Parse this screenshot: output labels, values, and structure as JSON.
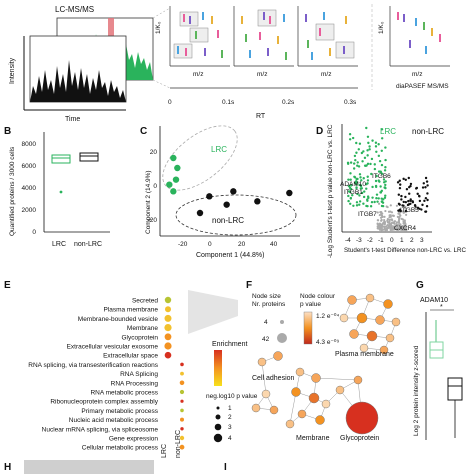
{
  "panel_A": {
    "lcms_title": "LC-MS/MS",
    "time_label": "Time",
    "intensity_label": "Intensity",
    "yaxis_label": "1/K₀",
    "mz_label": "m/z",
    "rt_label": "RT",
    "rt_ticks": [
      "0",
      "0.1s",
      "0.2s",
      "0.3s"
    ],
    "dia_label": "diaPASEF MS/MS"
  },
  "panel_B": {
    "label": "B",
    "ylabel": "Quantified proteins / 3000 cells",
    "yticks": [
      "0",
      "2000",
      "4000",
      "6000",
      "8000"
    ],
    "categories": [
      "LRC",
      "non-LRC"
    ]
  },
  "panel_C": {
    "label": "C",
    "xlabel": "Component 1 (44.8%)",
    "ylabel": "Component 2 (14.9%)",
    "xticks": [
      "-20",
      "0",
      "20",
      "40"
    ],
    "yticks": [
      "-20",
      "0",
      "20"
    ],
    "group_lrc": "LRC",
    "group_nonlrc": "non-LRC"
  },
  "panel_D": {
    "label": "D",
    "ylabel": "-Log Student's t-test p value non-LRC vs. LRC",
    "xlabel": "Student's t-test Difference non-LRC vs. LRC",
    "xticks": [
      "-4",
      "-3",
      "-2",
      "-1",
      "0",
      "1",
      "2",
      "3"
    ],
    "group_lrc": "LRC",
    "group_nonlrc": "non-LRC",
    "gene_labels": [
      "ADAM10",
      "ITGB1",
      "ITGB6",
      "ITGB7",
      "ITGB5",
      "CXCR4"
    ]
  },
  "panel_E": {
    "label": "E",
    "terms": [
      "Secreted",
      "Plasma membrane",
      "Membrane-bounded vesicle",
      "Membrane",
      "Glycoprotein",
      "Extracellular vesicular exosome",
      "Extracellular space",
      "RNA splicing, via transesterification reactions",
      "RNA Splicing",
      "RNA Processing",
      "RNA metabolic process",
      "Ribonucleoprotein complex assembly",
      "Primary metabolic process",
      "Nucleic acid metabolic process",
      "Nuclear mRNA splicing, via spliceosome",
      "Gene expression",
      "Cellular metabolic process"
    ],
    "columns": [
      "LRC",
      "non-LRC"
    ],
    "enrichment_title": "Enrichment",
    "size_title": "neg.log10 p value",
    "size_values": [
      "1",
      "2",
      "3",
      "4"
    ],
    "colors": {
      "low": "#f7e11c",
      "mid": "#f39221",
      "high": "#d7301f",
      "dots_low": "#b7c433"
    }
  },
  "panel_F": {
    "label": "F",
    "node_size_title": "Node size\nNr. proteins",
    "node_colour_title": "Node colour\np value",
    "size_values": [
      "4",
      "42"
    ],
    "pvalue_values": [
      "1.2 e⁻⁰⁴",
      "4.3 e⁻⁰⁹"
    ],
    "clusters": [
      "Plasma membrane",
      "Cell adhesion",
      "Membrane",
      "Glycoprotein"
    ]
  },
  "panel_G": {
    "label": "G",
    "title": "ADAM10",
    "ylabel": "Log 2 protein intensity z-scored",
    "significance": "*"
  },
  "panel_H": {
    "label": "H"
  },
  "panel_I": {
    "label": "I"
  },
  "colors": {
    "green": "#2ab35c",
    "green_light": "#7fd6a1",
    "black": "#111111",
    "grey": "#aaaaaa",
    "red_band": "#e3747a"
  },
  "chart_data": [
    {
      "type": "box",
      "panel": "B",
      "categories": [
        "LRC",
        "non-LRC"
      ],
      "values": [
        7400,
        7800
      ],
      "ylabel": "Quantified proteins / 3000 cells",
      "ylim": [
        0,
        9000
      ]
    },
    {
      "type": "scatter",
      "panel": "C",
      "xlabel": "Component 1 (44.8%)",
      "ylabel": "Component 2 (14.9%)",
      "series": [
        {
          "name": "LRC",
          "points": [
            [
              -35,
              18
            ],
            [
              -32,
              12
            ],
            [
              -33,
              5
            ],
            [
              -38,
              2
            ],
            [
              -35,
              -2
            ]
          ]
        },
        {
          "name": "non-LRC",
          "points": [
            [
              -8,
              -5
            ],
            [
              5,
              -10
            ],
            [
              10,
              -2
            ],
            [
              28,
              -8
            ],
            [
              -15,
              -15
            ],
            [
              52,
              -3
            ]
          ]
        }
      ]
    },
    {
      "type": "scatter",
      "panel": "D",
      "xlabel": "Student's t-test Difference non-LRC vs. LRC",
      "ylabel": "-Log Student's t-test p value non-LRC vs. LRC",
      "xlim": [
        -4,
        3
      ]
    },
    {
      "type": "box",
      "panel": "G",
      "categories": [
        "LRC",
        "non-LRC"
      ],
      "values": [
        0.6,
        -0.8
      ],
      "ylabel": "Log 2 protein intensity z-scored"
    }
  ]
}
